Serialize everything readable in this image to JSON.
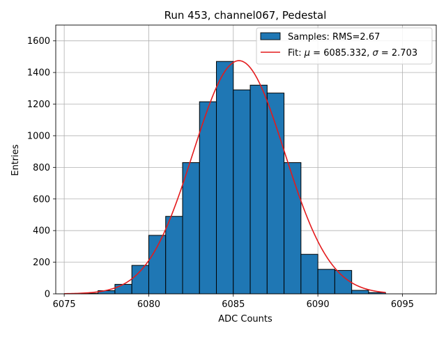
{
  "chart_data": {
    "type": "bar",
    "title": "Run 453, channel067, Pedestal",
    "xlabel": "ADC Counts",
    "ylabel": "Entries",
    "xlim": [
      6074.5,
      6097
    ],
    "ylim": [
      0,
      1700
    ],
    "grid": true,
    "legend_position": "top-right",
    "x_ticks": [
      6075,
      6080,
      6085,
      6090,
      6095
    ],
    "y_ticks": [
      0,
      200,
      400,
      600,
      800,
      1000,
      1200,
      1400,
      1600
    ],
    "histogram": {
      "name": "Samples: RMS=2.67",
      "color": "#1f77b4",
      "edge_color": "#000000",
      "bin_edges": [
        6076,
        6077,
        6078,
        6079,
        6080,
        6081,
        6082,
        6083,
        6084,
        6085,
        6086,
        6087,
        6088,
        6089,
        6090,
        6091,
        6092,
        6093,
        6094
      ],
      "counts": [
        3,
        20,
        60,
        180,
        370,
        490,
        830,
        1215,
        1470,
        1290,
        1320,
        1270,
        830,
        250,
        155,
        148,
        22,
        8
      ]
    },
    "fit": {
      "name": "Fit: μ = 6085.332, σ = 2.703",
      "legend_parts": [
        "Fit: ",
        "μ",
        " = 6085.332, ",
        "σ",
        " = 2.703"
      ],
      "color": "#e41a1c",
      "mu": 6085.332,
      "sigma": 2.703,
      "amplitude": 1475,
      "x_range": [
        6075,
        6094
      ]
    }
  }
}
